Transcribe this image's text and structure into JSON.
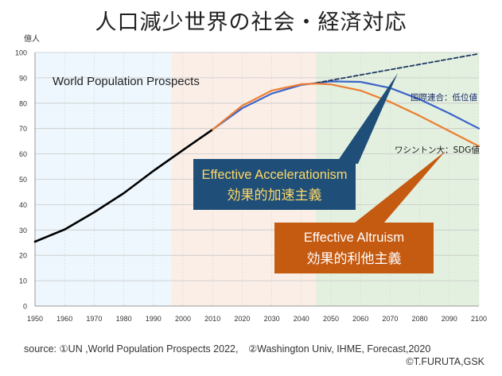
{
  "title": "人口減少世界の社会・経済対応",
  "chart_data": {
    "type": "line",
    "y_unit": "億人",
    "inner_label": "World Population Prospects",
    "xlim": [
      1950,
      2100
    ],
    "ylim": [
      0,
      100
    ],
    "x_ticks": [
      1950,
      1960,
      1970,
      1980,
      1990,
      2000,
      2010,
      2020,
      2030,
      2040,
      2050,
      2060,
      2070,
      2080,
      2090,
      2100
    ],
    "y_ticks": [
      0,
      10,
      20,
      30,
      40,
      50,
      60,
      70,
      80,
      90,
      100
    ],
    "grid": true,
    "background_bands": [
      {
        "from": 1950,
        "to": 1996,
        "color": "#eef7fd"
      },
      {
        "from": 1996,
        "to": 2045,
        "color": "#fbeee7"
      },
      {
        "from": 2045,
        "to": 2100,
        "color": "#e3f0df"
      }
    ],
    "series": [
      {
        "color": "#000000",
        "style": "solid",
        "x": [
          1950,
          1960,
          1970,
          1980,
          1990,
          2000,
          2010
        ],
        "y": [
          25.4,
          30.2,
          37.0,
          44.5,
          53.3,
          61.5,
          69.6
        ]
      },
      {
        "name": "国際連合：低位値",
        "color": "#3c64c8",
        "style": "solid",
        "x": [
          2010,
          2020,
          2030,
          2040,
          2050,
          2060,
          2070,
          2080,
          2090,
          2100
        ],
        "y": [
          69.6,
          78.0,
          83.8,
          87.2,
          88.6,
          88.4,
          86.0,
          81.5,
          76.0,
          70.0
        ]
      },
      {
        "name": "ワシントン大：SDG値",
        "color": "#ed7d31",
        "style": "solid",
        "x": [
          2010,
          2020,
          2030,
          2040,
          2045,
          2050,
          2060,
          2070,
          2080,
          2090,
          2100
        ],
        "y": [
          69.6,
          79.0,
          85.0,
          87.5,
          87.7,
          87.4,
          85.0,
          80.5,
          75.0,
          69.0,
          63.0
        ]
      },
      {
        "color": "#1f3864",
        "style": "dashed",
        "x": [
          2045,
          2100
        ],
        "y": [
          88.0,
          99.5
        ]
      }
    ],
    "annotations": [
      {
        "label": "国際連合：低位値",
        "color": "#1a2a6c"
      },
      {
        "label": "ワシントン大：SDG値",
        "color": "#1a1a1a"
      }
    ]
  },
  "callouts": {
    "accel": {
      "line1": "Effective Accelerationism",
      "line2": "効果的加速主義",
      "bg": "#1f4e79",
      "text_color": "#ffd966"
    },
    "altru": {
      "line1": "Effective Altruism",
      "line2": "効果的利他主義",
      "bg": "#c55a11",
      "text_color": "#ffffff"
    }
  },
  "source": "source: ①UN ,World Population Prospects 2022,　②Washington Univ, IHME, Forecast,2020",
  "copyright": "©T.FURUTA,GSK"
}
